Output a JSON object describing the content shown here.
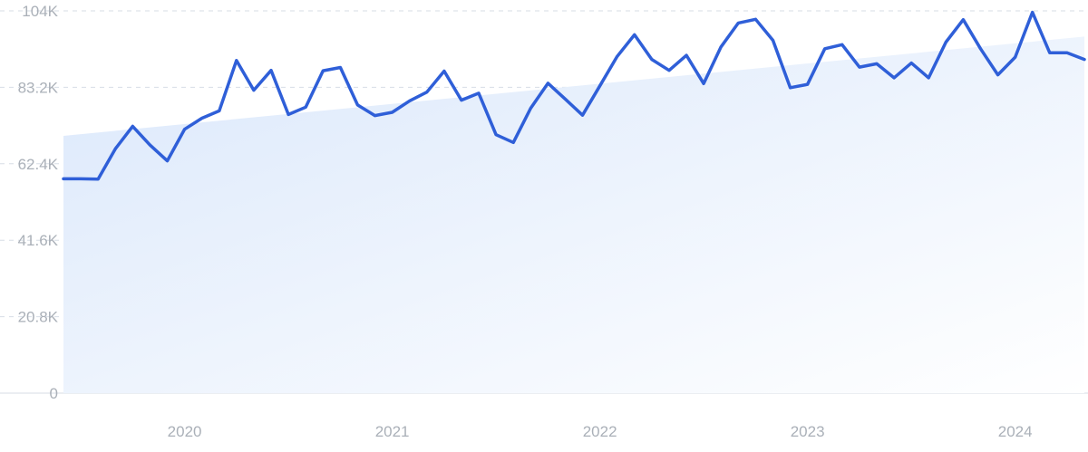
{
  "chart_data": {
    "type": "line",
    "title": "",
    "xlabel": "",
    "ylabel": "",
    "ylim": [
      0,
      104000
    ],
    "y_ticks": [
      {
        "value": 0,
        "label": "0"
      },
      {
        "value": 20800,
        "label": "20.8K"
      },
      {
        "value": 41600,
        "label": "41.6K"
      },
      {
        "value": 62400,
        "label": "62.4K"
      },
      {
        "value": 83200,
        "label": "83.2K"
      },
      {
        "value": 104000,
        "label": "104K"
      }
    ],
    "x_ticks": [
      {
        "value": "2020-01",
        "label": "2020"
      },
      {
        "value": "2021-01",
        "label": "2021"
      },
      {
        "value": "2022-01",
        "label": "2022"
      },
      {
        "value": "2023-01",
        "label": "2023"
      },
      {
        "value": "2024-01",
        "label": "2024"
      }
    ],
    "xlim": [
      "2019-06",
      "2024-05"
    ],
    "grid": true,
    "legend": "none",
    "colors": {
      "line": "#2f5fd8",
      "trend_fill_top": "#dbe8fb",
      "trend_fill_bottom": "#ffffff",
      "grid": "#d7dde6",
      "tick_text": "#aab0b8"
    },
    "trend": {
      "x": [
        "2019-06",
        "2024-05"
      ],
      "y": [
        70000,
        97000
      ]
    },
    "series": [
      {
        "x": [
          "2019-06",
          "2019-07",
          "2019-08",
          "2019-09",
          "2019-10",
          "2019-11",
          "2019-12",
          "2020-01",
          "2020-02",
          "2020-03",
          "2020-04",
          "2020-05",
          "2020-06",
          "2020-07",
          "2020-08",
          "2020-09",
          "2020-10",
          "2020-11",
          "2020-12",
          "2021-01",
          "2021-02",
          "2021-03",
          "2021-04",
          "2021-05",
          "2021-06",
          "2021-07",
          "2021-08",
          "2021-09",
          "2021-10",
          "2021-11",
          "2021-12",
          "2022-01",
          "2022-02",
          "2022-03",
          "2022-04",
          "2022-05",
          "2022-06",
          "2022-07",
          "2022-08",
          "2022-09",
          "2022-10",
          "2022-11",
          "2022-12",
          "2023-01",
          "2023-02",
          "2023-03",
          "2023-04",
          "2023-05",
          "2023-06",
          "2023-07",
          "2023-08",
          "2023-09",
          "2023-10",
          "2023-11",
          "2023-12",
          "2024-01",
          "2024-02",
          "2024-03",
          "2024-04",
          "2024-05"
        ],
        "values": [
          58300,
          58300,
          58200,
          66500,
          72600,
          67500,
          63200,
          71800,
          74800,
          76800,
          90500,
          82400,
          87800,
          75800,
          77800,
          87700,
          88600,
          78400,
          75500,
          76400,
          79500,
          81900,
          87600,
          79700,
          81600,
          70300,
          68200,
          77500,
          84300,
          80000,
          75600,
          83600,
          91600,
          97500,
          90800,
          87800,
          91900,
          84200,
          94200,
          100700,
          101700,
          96000,
          83100,
          84000,
          93700,
          94800,
          88700,
          89600,
          85800,
          89800,
          85800,
          95500,
          101600,
          93700,
          86600,
          91400,
          103600,
          92600,
          92600,
          90800
        ]
      }
    ]
  }
}
